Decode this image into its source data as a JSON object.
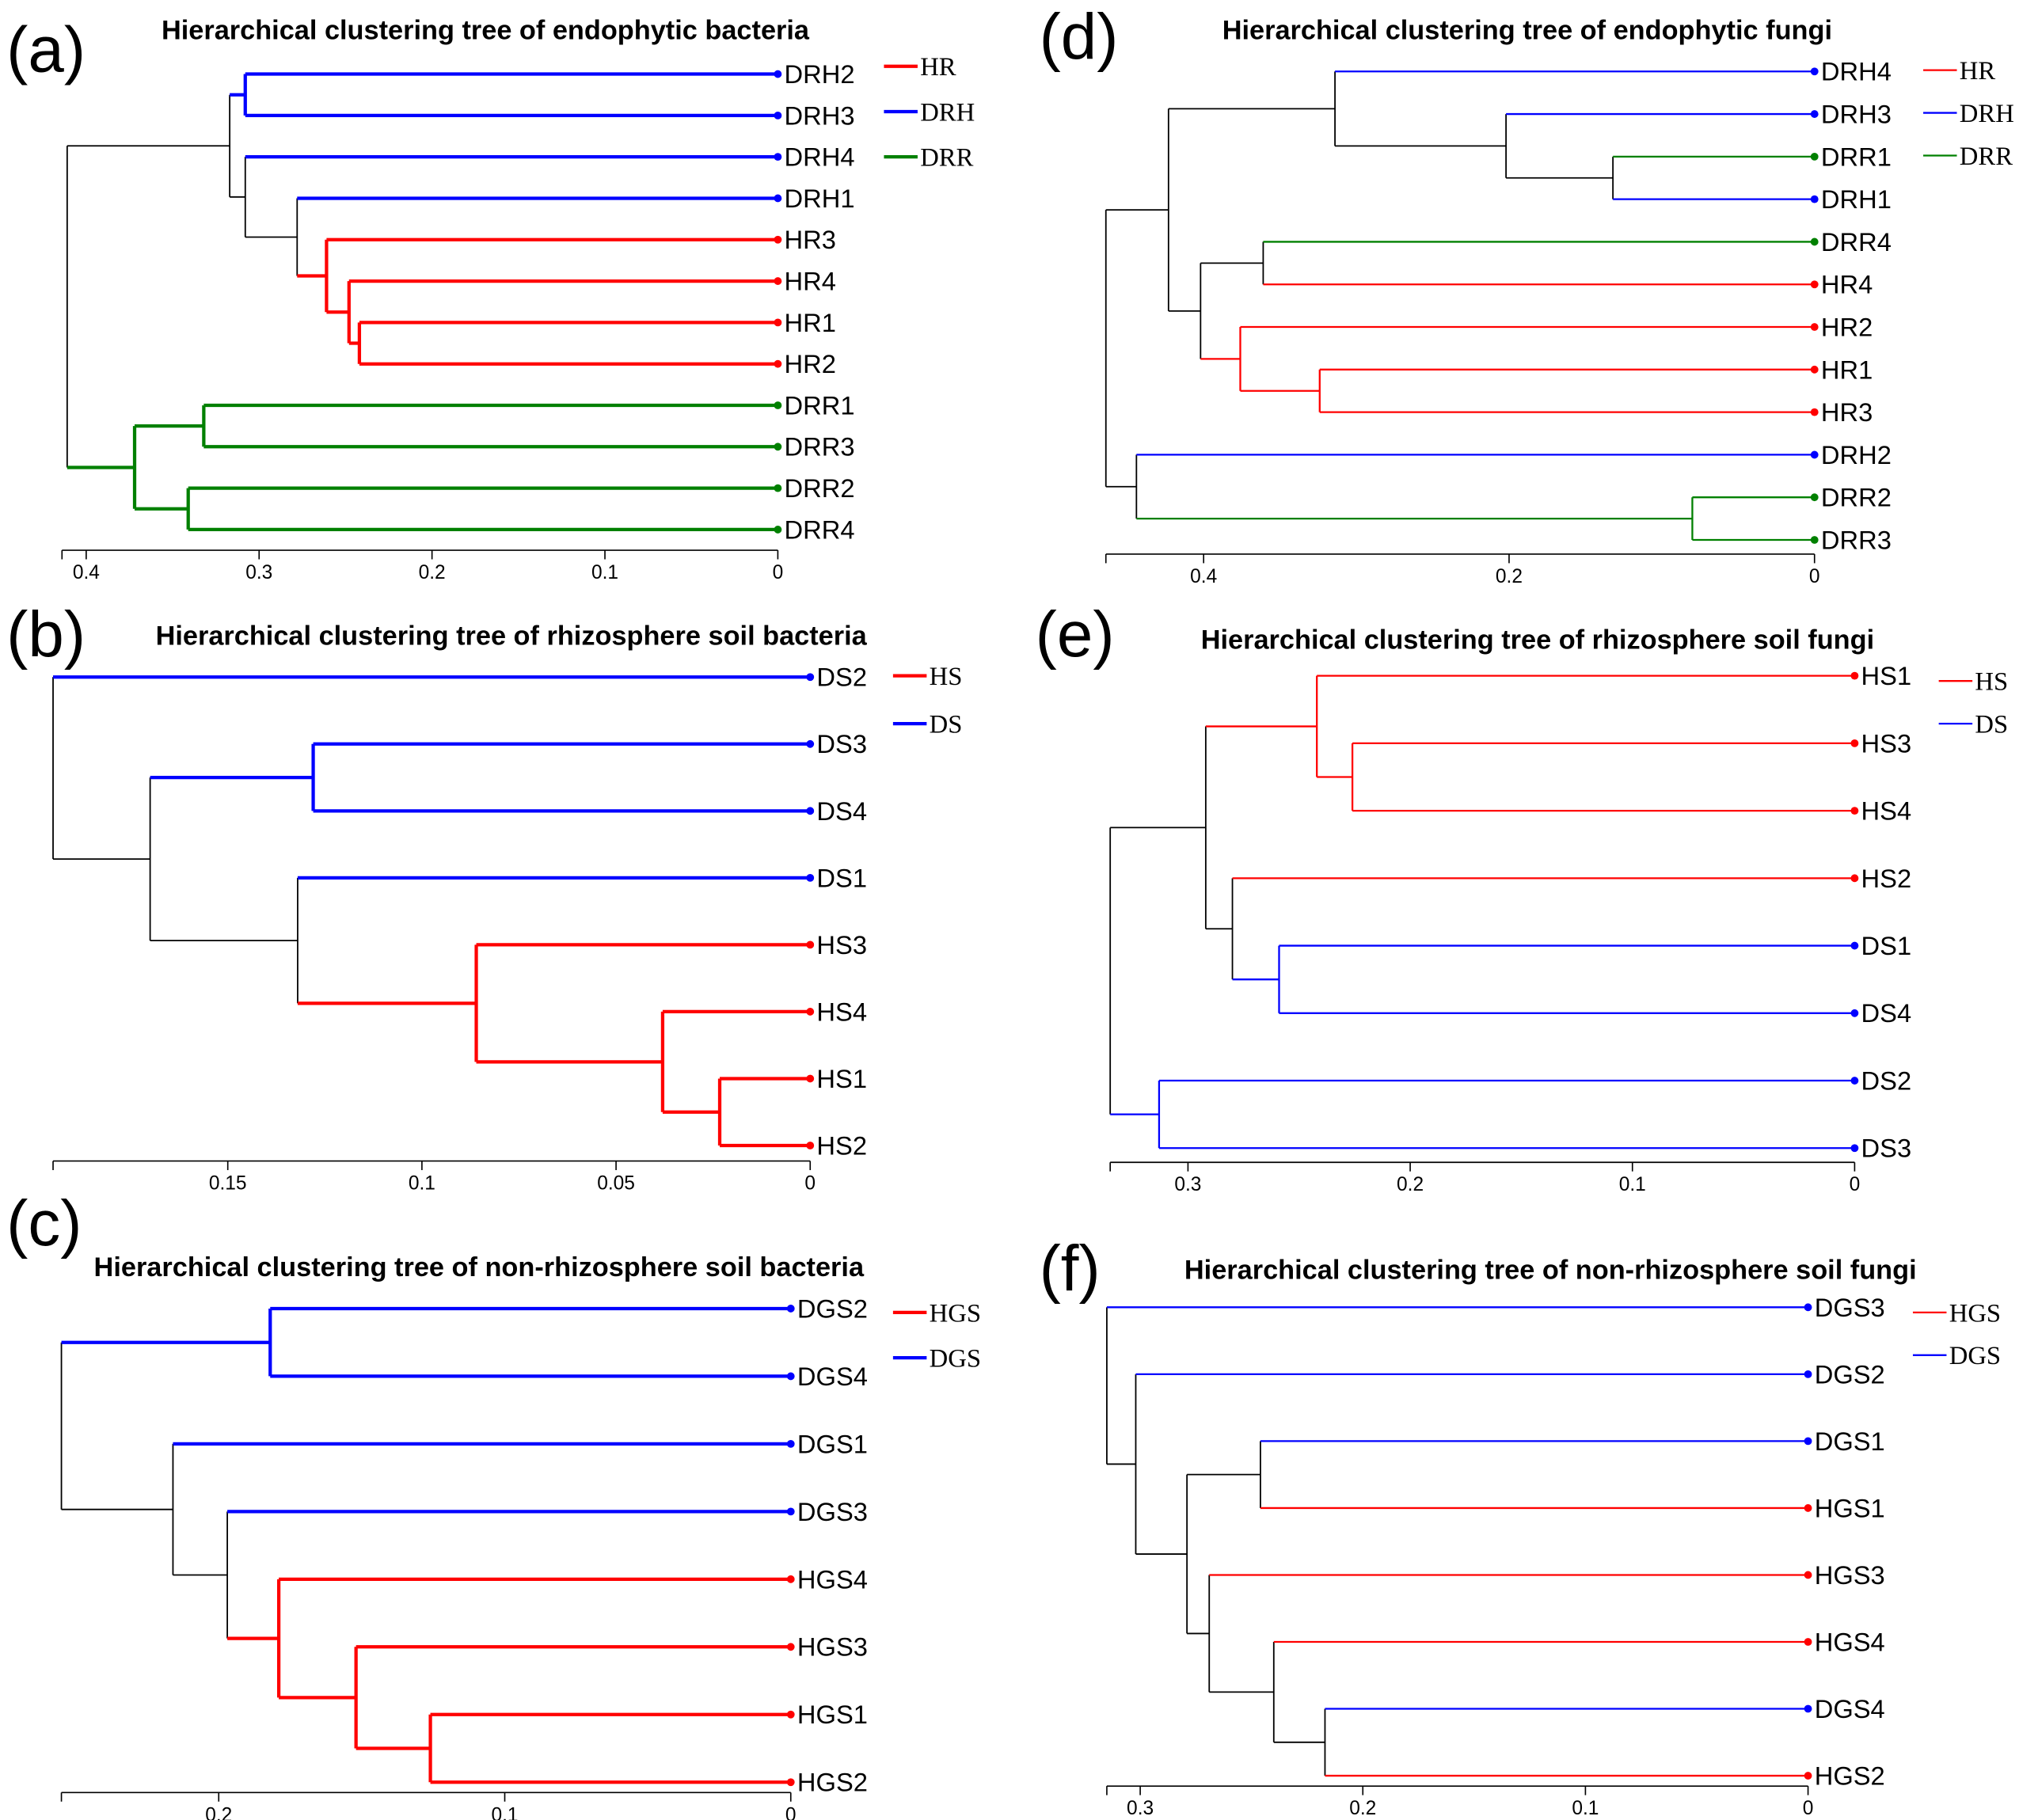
{
  "colors": {
    "HR": "#ff0000",
    "DRH": "#0000ff",
    "DRR": "#008000",
    "HS": "#ff0000",
    "DS": "#0000ff",
    "HGS": "#ff0000",
    "DGS": "#0000ff",
    "mixed": "#000000"
  },
  "panels": [
    {
      "id": "a",
      "label": "(a)",
      "title": "Hierarchical clustering tree of endophytic bacteria",
      "legend": [
        "HR",
        "DRH",
        "DRR"
      ],
      "ticks": [
        "0.4",
        "0.3",
        "0.2",
        "0.1",
        "0"
      ],
      "tick_values": [
        0.4,
        0.3,
        0.2,
        0.1,
        0
      ],
      "axis_max": 0.414,
      "leaves": [
        "DRH2",
        "DRH3",
        "DRH4",
        "DRH1",
        "HR3",
        "HR4",
        "HR1",
        "HR2",
        "DRR1",
        "DRR3",
        "DRR2",
        "DRR4"
      ],
      "tree": {
        "h": 0.411,
        "c": [
          {
            "h": 0.317,
            "c": [
              {
                "h": 0.308,
                "c": [
                  "DRH2",
                  "DRH3"
                ]
              },
              {
                "h": 0.308,
                "c": [
                  "DRH4",
                  {
                    "h": 0.278,
                    "c": [
                      "DRH1",
                      {
                        "h": 0.261,
                        "c": [
                          "HR3",
                          {
                            "h": 0.248,
                            "c": [
                              "HR4",
                              {
                                "h": 0.242,
                                "c": [
                                  "HR1",
                                  "HR2"
                                ]
                              }
                            ]
                          }
                        ]
                      }
                    ]
                  }
                ]
              }
            ]
          },
          {
            "h": 0.372,
            "c": [
              {
                "h": 0.332,
                "c": [
                  "DRR1",
                  "DRR3"
                ]
              },
              {
                "h": 0.341,
                "c": [
                  "DRR2",
                  "DRR4"
                ]
              }
            ]
          }
        ]
      }
    },
    {
      "id": "b",
      "label": "(b)",
      "title": "Hierarchical clustering tree of rhizosphere soil bacteria",
      "legend": [
        "HS",
        "DS"
      ],
      "ticks": [
        "0.15",
        "0.1",
        "0.05",
        "0"
      ],
      "tick_values": [
        0.15,
        0.1,
        0.05,
        0
      ],
      "axis_max": 0.195,
      "leaves": [
        "DS2",
        "DS3",
        "DS4",
        "DS1",
        "HS3",
        "HS4",
        "HS1",
        "HS2"
      ],
      "tree": {
        "h": 0.195,
        "c": [
          "DS2",
          {
            "h": 0.17,
            "c": [
              {
                "h": 0.128,
                "c": [
                  "DS3",
                  "DS4"
                ]
              },
              {
                "h": 0.132,
                "c": [
                  "DS1",
                  {
                    "h": 0.086,
                    "c": [
                      "HS3",
                      {
                        "h": 0.038,
                        "c": [
                          "HS4",
                          {
                            "h": 0.0233,
                            "c": [
                              "HS1",
                              "HS2"
                            ]
                          }
                        ]
                      }
                    ]
                  }
                ]
              }
            ]
          }
        ]
      }
    },
    {
      "id": "c",
      "label": "(c)",
      "title": "Hierarchical clustering tree of non-rhizosphere soil bacteria",
      "legend": [
        "HGS",
        "DGS"
      ],
      "ticks": [
        "0.2",
        "0.1",
        "0"
      ],
      "tick_values": [
        0.2,
        0.1,
        0
      ],
      "axis_max": 0.255,
      "leaves": [
        "DGS2",
        "DGS4",
        "DGS1",
        "DGS3",
        "HGS4",
        "HGS3",
        "HGS1",
        "HGS2"
      ],
      "tree": {
        "h": 0.255,
        "c": [
          {
            "h": 0.182,
            "c": [
              "DGS2",
              "DGS4"
            ]
          },
          {
            "h": 0.216,
            "c": [
              "DGS1",
              {
                "h": 0.197,
                "c": [
                  "DGS3",
                  {
                    "h": 0.179,
                    "c": [
                      "HGS4",
                      {
                        "h": 0.152,
                        "c": [
                          "HGS3",
                          {
                            "h": 0.126,
                            "c": [
                              "HGS1",
                              "HGS2"
                            ]
                          }
                        ]
                      }
                    ]
                  }
                ]
              }
            ]
          }
        ]
      }
    },
    {
      "id": "d",
      "label": "(d)",
      "title": "Hierarchical clustering tree of endophytic fungi",
      "legend": [
        "HR",
        "DRH",
        "DRR"
      ],
      "ticks": [
        "0.4",
        "0.2",
        "0"
      ],
      "tick_values": [
        0.4,
        0.2,
        0
      ],
      "axis_max": 0.464,
      "leaves": [
        "DRH4",
        "DRH3",
        "DRR1",
        "DRH1",
        "DRR4",
        "HR4",
        "HR2",
        "HR1",
        "HR3",
        "DRH2",
        "DRR2",
        "DRR3"
      ],
      "tree": {
        "h": 0.464,
        "c": [
          {
            "h": 0.423,
            "c": [
              {
                "h": 0.314,
                "c": [
                  "DRH4",
                  {
                    "h": 0.202,
                    "c": [
                      "DRH3",
                      {
                        "h": 0.132,
                        "c": [
                          "DRR1",
                          "DRH1"
                        ]
                      }
                    ]
                  }
                ]
              },
              {
                "h": 0.402,
                "c": [
                  {
                    "h": 0.361,
                    "c": [
                      "DRR4",
                      "HR4"
                    ]
                  },
                  {
                    "h": 0.376,
                    "c": [
                      "HR2",
                      {
                        "h": 0.324,
                        "c": [
                          "HR1",
                          "HR3"
                        ]
                      }
                    ]
                  }
                ]
              }
            ]
          },
          {
            "h": 0.444,
            "c": [
              "DRH2",
              {
                "h": 0.08,
                "c": [
                  "DRR2",
                  "DRR3"
                ]
              }
            ]
          }
        ]
      }
    },
    {
      "id": "e",
      "label": "(e)",
      "title": "Hierarchical clustering tree of rhizosphere soil fungi",
      "legend": [
        "HS",
        "DS"
      ],
      "ticks": [
        "0.3",
        "0.2",
        "0.1",
        "0"
      ],
      "tick_values": [
        0.3,
        0.2,
        0.1,
        0
      ],
      "axis_max": 0.335,
      "leaves": [
        "HS1",
        "HS3",
        "HS4",
        "HS2",
        "DS1",
        "DS4",
        "DS2",
        "DS3"
      ],
      "tree": {
        "h": 0.335,
        "c": [
          {
            "h": 0.292,
            "c": [
              {
                "h": 0.242,
                "c": [
                  "HS1",
                  {
                    "h": 0.226,
                    "c": [
                      "HS3",
                      "HS4"
                    ]
                  }
                ]
              },
              {
                "h": 0.28,
                "c": [
                  "HS2",
                  {
                    "h": 0.259,
                    "c": [
                      "DS1",
                      "DS4"
                    ]
                  }
                ]
              }
            ]
          },
          {
            "h": 0.313,
            "c": [
              "DS2",
              "DS3"
            ]
          }
        ]
      }
    },
    {
      "id": "f",
      "label": "(f)",
      "title": "Hierarchical clustering tree of non-rhizosphere soil fungi",
      "legend": [
        "HGS",
        "DGS"
      ],
      "ticks": [
        "0.3",
        "0.2",
        "0.1",
        "0"
      ],
      "tick_values": [
        0.3,
        0.2,
        0.1,
        0
      ],
      "axis_max": 0.315,
      "leaves": [
        "DGS3",
        "DGS2",
        "DGS1",
        "HGS1",
        "HGS3",
        "HGS4",
        "DGS4",
        "HGS2"
      ],
      "tree": {
        "h": 0.315,
        "c": [
          "DGS3",
          {
            "h": 0.302,
            "c": [
              "DGS2",
              {
                "h": 0.279,
                "c": [
                  {
                    "h": 0.246,
                    "c": [
                      "DGS1",
                      "HGS1"
                    ]
                  },
                  {
                    "h": 0.269,
                    "c": [
                      "HGS3",
                      {
                        "h": 0.24,
                        "c": [
                          "HGS4",
                          {
                            "h": 0.217,
                            "c": [
                              "DGS4",
                              "HGS2"
                            ]
                          }
                        ]
                      }
                    ]
                  }
                ]
              }
            ]
          }
        ]
      }
    }
  ]
}
